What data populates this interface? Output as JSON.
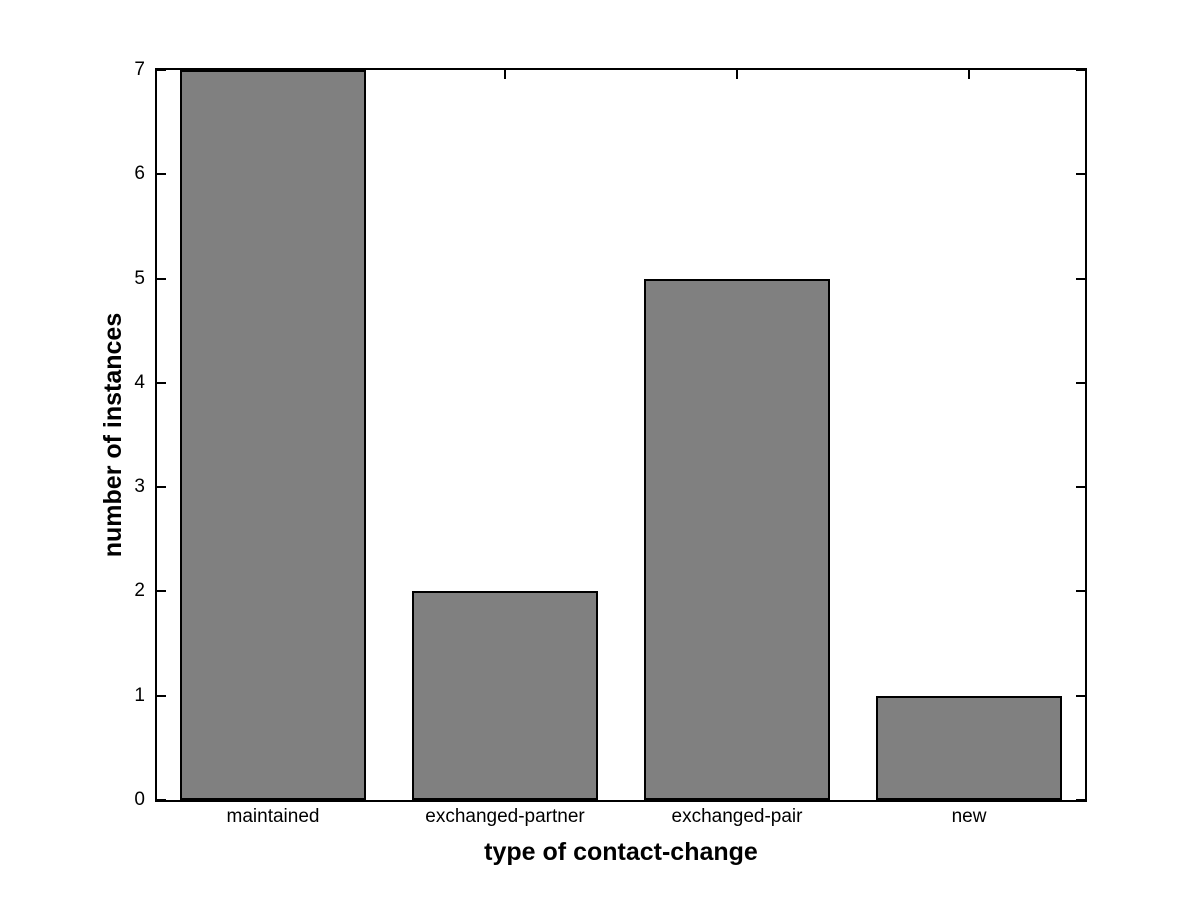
{
  "figure": {
    "background_color": "#ffffff"
  },
  "chart_data": {
    "type": "bar",
    "title": "",
    "categories": [
      "maintained",
      "exchanged-partner",
      "exchanged-pair",
      "new"
    ],
    "values": [
      7,
      2,
      5,
      1
    ],
    "xlabel": "type of contact-change",
    "ylabel": "number of instances",
    "ylim": [
      0,
      7
    ],
    "yticks": [
      0,
      1,
      2,
      3,
      4,
      5,
      6,
      7
    ],
    "bar_width_fraction": 0.8,
    "bar_fill_color": "#808080",
    "bar_edge_color": "#000000",
    "axis_color": "#000000",
    "plot_background_color": "#ffffff",
    "grid": false,
    "legend": null,
    "tick_direction": "in"
  }
}
